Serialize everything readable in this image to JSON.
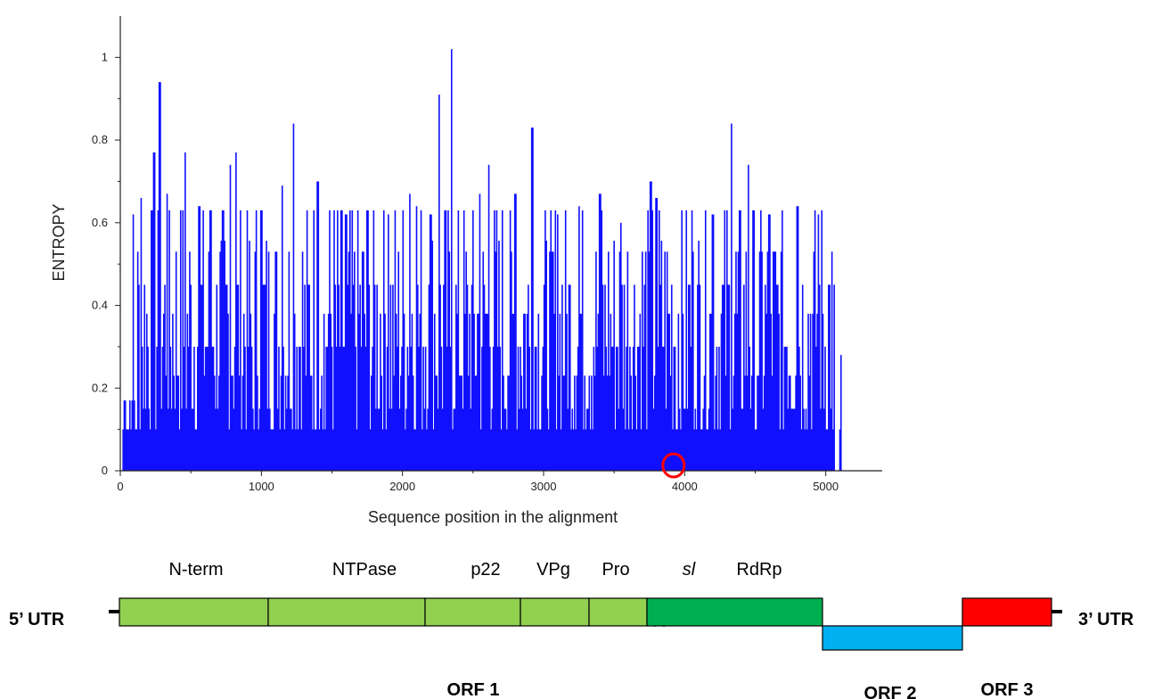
{
  "colors": {
    "entropy_bars": "#1010ff",
    "orf1_light": "#92d050",
    "orf1_rdrp": "#00b050",
    "orf2": "#00b0f0",
    "orf3": "#ff0000",
    "highlight_circle": "#ff0000"
  },
  "chart_data": {
    "type": "bar",
    "xlabel": "Sequence position in the alignment",
    "ylabel": "ENTROPY",
    "xlim": [
      0,
      5400
    ],
    "ylim": [
      0,
      1.1
    ],
    "xticks": [
      0,
      1000,
      2000,
      3000,
      4000,
      5000
    ],
    "yticks": [
      0,
      0.2,
      0.4,
      0.6,
      0.8,
      1
    ],
    "xtick_labels": [
      "0",
      "1000",
      "2000",
      "3000",
      "4000",
      "5000"
    ],
    "ytick_labels": [
      "0",
      "0.2",
      "0.4",
      "0.6",
      "0.8",
      "1"
    ],
    "grid": false,
    "series": [
      {
        "color": "#1010ff",
        "peaks": [
          {
            "x": 30,
            "y": 0.17
          },
          {
            "x": 90,
            "y": 0.62
          },
          {
            "x": 150,
            "y": 0.66
          },
          {
            "x": 240,
            "y": 0.77
          },
          {
            "x": 280,
            "y": 0.94
          },
          {
            "x": 330,
            "y": 0.67
          },
          {
            "x": 460,
            "y": 0.77
          },
          {
            "x": 560,
            "y": 0.64
          },
          {
            "x": 640,
            "y": 0.63
          },
          {
            "x": 780,
            "y": 0.74
          },
          {
            "x": 820,
            "y": 0.77
          },
          {
            "x": 1000,
            "y": 0.63
          },
          {
            "x": 1150,
            "y": 0.69
          },
          {
            "x": 1230,
            "y": 0.84
          },
          {
            "x": 1400,
            "y": 0.7
          },
          {
            "x": 1600,
            "y": 0.62
          },
          {
            "x": 1750,
            "y": 0.63
          },
          {
            "x": 1900,
            "y": 0.62
          },
          {
            "x": 2050,
            "y": 0.67
          },
          {
            "x": 2100,
            "y": 0.64
          },
          {
            "x": 2200,
            "y": 0.62
          },
          {
            "x": 2260,
            "y": 0.91
          },
          {
            "x": 2350,
            "y": 1.02
          },
          {
            "x": 2550,
            "y": 0.67
          },
          {
            "x": 2610,
            "y": 0.74
          },
          {
            "x": 2800,
            "y": 0.67
          },
          {
            "x": 2920,
            "y": 0.83
          },
          {
            "x": 3100,
            "y": 0.62
          },
          {
            "x": 3250,
            "y": 0.64
          },
          {
            "x": 3400,
            "y": 0.67
          },
          {
            "x": 3550,
            "y": 0.6
          },
          {
            "x": 3760,
            "y": 0.7
          },
          {
            "x": 3800,
            "y": 0.66
          },
          {
            "x": 4050,
            "y": 0.63
          },
          {
            "x": 4200,
            "y": 0.62
          },
          {
            "x": 4330,
            "y": 0.84
          },
          {
            "x": 4450,
            "y": 0.74
          },
          {
            "x": 4600,
            "y": 0.62
          },
          {
            "x": 4800,
            "y": 0.64
          },
          {
            "x": 4950,
            "y": 0.62
          },
          {
            "x": 5110,
            "y": 0.28
          }
        ],
        "zeros_at": [
          950,
          1450,
          1380,
          3550,
          3940,
          4500,
          5050
        ]
      }
    ],
    "highlight": {
      "x": 3940,
      "y": 0,
      "shape": "circle",
      "color": "#ff0000"
    }
  },
  "genome": {
    "domains": [
      {
        "name": "N-term",
        "italic": false
      },
      {
        "name": "NTPase",
        "italic": false
      },
      {
        "name": "p22",
        "italic": false
      },
      {
        "name": "VPg",
        "italic": false
      },
      {
        "name": "Pro",
        "italic": false
      },
      {
        "name": "sl",
        "italic": true
      },
      {
        "name": "RdRp",
        "italic": false
      }
    ],
    "utr5": "5’ UTR",
    "utr3": "3’ UTR",
    "orfs": [
      {
        "name": "ORF 1"
      },
      {
        "name": "ORF 2"
      },
      {
        "name": "ORF 3"
      }
    ]
  }
}
